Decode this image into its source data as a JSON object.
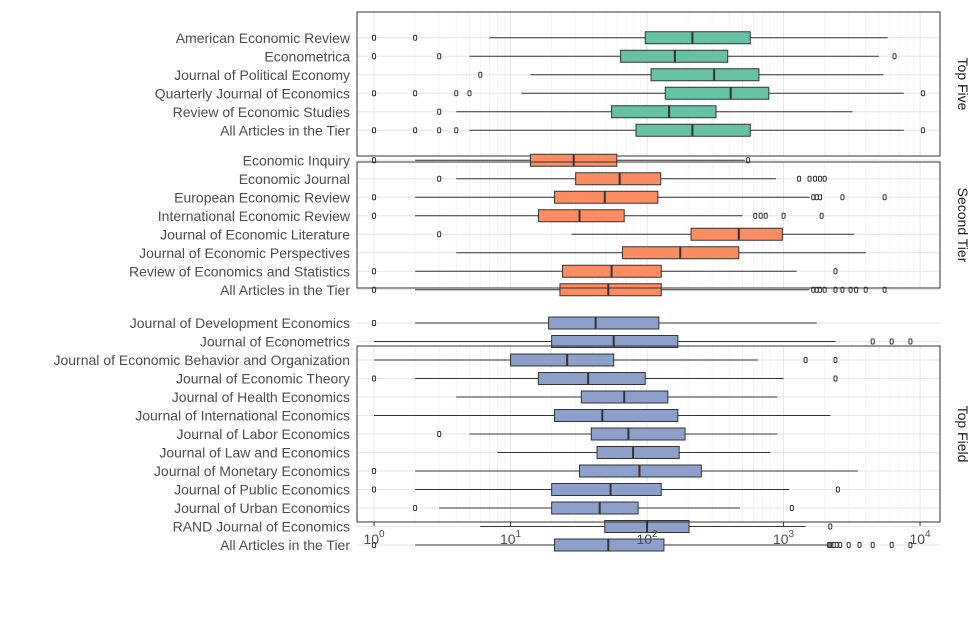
{
  "chart_data": {
    "type": "boxplot",
    "x_scale": "log10",
    "xlim": [
      0.75,
      14000
    ],
    "x_ticks": [
      1,
      10,
      100,
      1000,
      10000
    ],
    "x_tick_labels": [
      {
        "base": "10",
        "exp": "0"
      },
      {
        "base": "10",
        "exp": "1"
      },
      {
        "base": "10",
        "exp": "2"
      },
      {
        "base": "10",
        "exp": "3"
      },
      {
        "base": "10",
        "exp": "4"
      }
    ],
    "grid": true,
    "panels": [
      {
        "label": "Top Five",
        "color": "#66C2A5",
        "categories": [
          {
            "name": "American Economic Review",
            "lower": 7,
            "q1": 97,
            "median": 215,
            "q3": 570,
            "upper": 5800,
            "outliers": [
              1,
              2
            ]
          },
          {
            "name": "Econometrica",
            "lower": 5,
            "q1": 64,
            "median": 160,
            "q3": 390,
            "upper": 5000,
            "outliers": [
              1,
              3,
              6500
            ]
          },
          {
            "name": "Journal of Political Economy",
            "lower": 14,
            "q1": 107,
            "median": 310,
            "q3": 660,
            "upper": 5400,
            "outliers": [
              6
            ]
          },
          {
            "name": "Quarterly Journal of Economics",
            "lower": 12,
            "q1": 136,
            "median": 410,
            "q3": 780,
            "upper": 7600,
            "outliers": [
              1,
              2,
              4,
              5,
              10500
            ]
          },
          {
            "name": "Review of Economic Studies",
            "lower": 4,
            "q1": 55,
            "median": 145,
            "q3": 320,
            "upper": 3200,
            "outliers": [
              3
            ]
          },
          {
            "name": "All Articles in the Tier",
            "lower": 5,
            "q1": 83,
            "median": 215,
            "q3": 570,
            "upper": 7600,
            "outliers": [
              1,
              2,
              3,
              4,
              10500
            ]
          }
        ]
      },
      {
        "label": "Second Tier",
        "color": "#FC8D62",
        "categories": [
          {
            "name": "Economic Inquiry",
            "lower": 2,
            "q1": 14,
            "median": 29,
            "q3": 60,
            "upper": 520,
            "outliers": [
              1,
              550
            ]
          },
          {
            "name": "Economic Journal",
            "lower": 4,
            "q1": 30,
            "median": 63,
            "q3": 126,
            "upper": 880,
            "outliers": [
              3,
              1300,
              1550,
              1700,
              1850,
              2000
            ]
          },
          {
            "name": "European Economic Review",
            "lower": 2,
            "q1": 21,
            "median": 49,
            "q3": 120,
            "upper": 1550,
            "outliers": [
              1,
              1650,
              1750,
              1850,
              2700,
              5500
            ]
          },
          {
            "name": "International Economic Review",
            "lower": 2,
            "q1": 16,
            "median": 32,
            "q3": 68,
            "upper": 500,
            "outliers": [
              1,
              620,
              680,
              740,
              1000,
              1900
            ]
          },
          {
            "name": "Journal of Economic Literature",
            "lower": 28,
            "q1": 210,
            "median": 470,
            "q3": 980,
            "upper": 3300,
            "outliers": [
              3
            ]
          },
          {
            "name": "Journal of Economic Perspectives",
            "lower": 4,
            "q1": 66,
            "median": 175,
            "q3": 470,
            "upper": 4000,
            "outliers": []
          },
          {
            "name": "Review of Economics and Statistics",
            "lower": 2,
            "q1": 24,
            "median": 55,
            "q3": 127,
            "upper": 1250,
            "outliers": [
              1,
              2400
            ]
          },
          {
            "name": "All Articles in the Tier",
            "lower": 2,
            "q1": 23,
            "median": 52,
            "q3": 127,
            "upper": 1550,
            "outliers": [
              1,
              1650,
              1750,
              1850,
              2000,
              2400,
              2700,
              3100,
              3400,
              4000,
              5500
            ]
          }
        ]
      },
      {
        "label": "Top Field",
        "color": "#8DA0CB",
        "categories": [
          {
            "name": "Journal of Development Economics",
            "lower": 2,
            "q1": 19,
            "median": 42,
            "q3": 122,
            "upper": 1750,
            "outliers": [
              1
            ]
          },
          {
            "name": "Journal of Econometrics",
            "lower": 1,
            "q1": 20,
            "median": 57,
            "q3": 168,
            "upper": 2400,
            "outliers": [
              4500,
              6200,
              8500
            ]
          },
          {
            "name": "Journal of Economic Behavior and Organization",
            "lower": 1,
            "q1": 10,
            "median": 26,
            "q3": 57,
            "upper": 650,
            "outliers": [
              1450,
              2400
            ]
          },
          {
            "name": "Journal of Economic Theory",
            "lower": 2,
            "q1": 16,
            "median": 37,
            "q3": 97,
            "upper": 1000,
            "outliers": [
              1,
              2400
            ]
          },
          {
            "name": "Journal of Health Economics",
            "lower": 4,
            "q1": 33,
            "median": 68,
            "q3": 142,
            "upper": 900,
            "outliers": []
          },
          {
            "name": "Journal of International Economics",
            "lower": 1,
            "q1": 21,
            "median": 47,
            "q3": 168,
            "upper": 2200,
            "outliers": []
          },
          {
            "name": "Journal of Labor Economics",
            "lower": 5,
            "q1": 39,
            "median": 73,
            "q3": 190,
            "upper": 900,
            "outliers": [
              3
            ]
          },
          {
            "name": "Journal of Law and Economics",
            "lower": 8,
            "q1": 43,
            "median": 79,
            "q3": 172,
            "upper": 800,
            "outliers": []
          },
          {
            "name": "Journal of Monetary Economics",
            "lower": 2,
            "q1": 32,
            "median": 88,
            "q3": 250,
            "upper": 3500,
            "outliers": [
              1
            ]
          },
          {
            "name": "Journal of Public Economics",
            "lower": 2,
            "q1": 20,
            "median": 54,
            "q3": 127,
            "upper": 1100,
            "outliers": [
              1,
              2500
            ]
          },
          {
            "name": "Journal of Urban Economics",
            "lower": 3,
            "q1": 20,
            "median": 45,
            "q3": 86,
            "upper": 480,
            "outliers": [
              2,
              1150
            ]
          },
          {
            "name": "RAND Journal of Economics",
            "lower": 6,
            "q1": 49,
            "median": 100,
            "q3": 203,
            "upper": 1450,
            "outliers": [
              2200
            ]
          },
          {
            "name": "All Articles in the Tier",
            "lower": 2,
            "q1": 21,
            "median": 52,
            "q3": 133,
            "upper": 2100,
            "outliers": [
              1,
              2150,
              2200,
              2250,
              2300,
              2350,
              2450,
              2600,
              3000,
              3600,
              4500,
              6200,
              8500
            ]
          }
        ]
      }
    ]
  }
}
